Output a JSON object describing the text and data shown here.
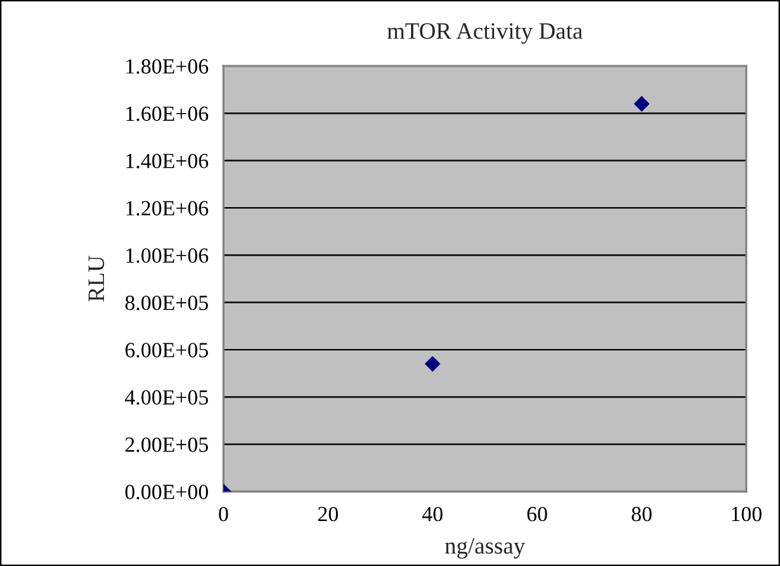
{
  "chart_data": {
    "type": "scatter",
    "title": "mTOR Activity Data",
    "xlabel": "ng/assay",
    "ylabel": "RLU",
    "x": [
      0,
      40,
      80
    ],
    "series": [
      {
        "color": "#000080",
        "values": [
          0,
          540000,
          1640000
        ]
      }
    ],
    "marker": "diamond",
    "grid": "y",
    "legend": false,
    "xlim": [
      0,
      100
    ],
    "xticks": [
      0,
      20,
      40,
      60,
      80,
      100
    ],
    "ylim": [
      0,
      1800000
    ],
    "yticks": [
      {
        "value": 0,
        "label": "0.00E+00"
      },
      {
        "value": 200000,
        "label": "2.00E+05"
      },
      {
        "value": 400000,
        "label": "4.00E+05"
      },
      {
        "value": 600000,
        "label": "6.00E+05"
      },
      {
        "value": 800000,
        "label": "8.00E+05"
      },
      {
        "value": 1000000,
        "label": "1.00E+06"
      },
      {
        "value": 1200000,
        "label": "1.20E+06"
      },
      {
        "value": 1400000,
        "label": "1.40E+06"
      },
      {
        "value": 1600000,
        "label": "1.60E+06"
      },
      {
        "value": 1800000,
        "label": "1.80E+06"
      }
    ]
  }
}
